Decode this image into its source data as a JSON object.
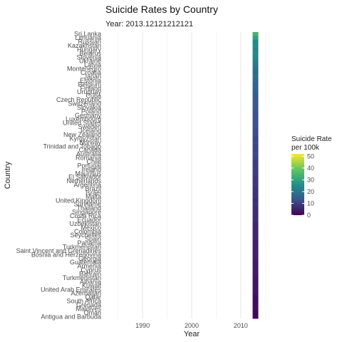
{
  "chart_data": {
    "type": "heatmap",
    "title": "Suicide Rates by Country",
    "subtitle": "Year: 2013.12121212121",
    "xlabel": "Year",
    "ylabel": "Country",
    "xlim": [
      1982,
      2018
    ],
    "x_ticks": [
      1990,
      2000,
      2010
    ],
    "tile_year": 2013,
    "grid": true,
    "legend": {
      "title_line1": "Suicide Rate",
      "title_line2": "per 100k",
      "position": "right",
      "ticks": [
        50,
        40,
        30,
        20,
        10,
        0
      ],
      "range": [
        0,
        52
      ],
      "palette": [
        "#440154",
        "#3b528b",
        "#21908c",
        "#5dc863",
        "#fde725"
      ]
    },
    "country_labels": [
      "Sri Lanka",
      "Lithuania",
      "Russian",
      "Kazakhstan",
      "Hungary",
      "Belarus",
      "Slovenia",
      "Ukraine",
      "Latvia",
      "Montenegro",
      "Croatia",
      "Japan",
      "Estonia",
      "Belgium",
      "Finland",
      "Uruguay",
      "Cuba",
      "Czech Republic",
      "Switzerland",
      "Slovakia",
      "Poland",
      "Germany",
      "Luxembourg",
      "United States",
      "Sweden",
      "Iceland",
      "New Zealand",
      "Kyrgyzstan",
      "Norway",
      "Trinidad and Tobago",
      "Canada",
      "Australia",
      "Romania",
      "Chile",
      "Portugal",
      "Ireland",
      "Mauritius",
      "El Salvador",
      "Netherlands",
      "Argentina",
      "Brazil",
      "Israel",
      "Malta",
      "United Kingdom",
      "Suriname",
      "Thailand",
      "Singapore",
      "Costa Rica",
      "Ecuador",
      "Uzbekistan",
      "Mexico",
      "Colombia",
      "Seychelles",
      "Spain",
      "Panama",
      "Turkmenistan",
      "Saint Vincent and Grenadines",
      "Bosnia and Herzegovina",
      "Georgia",
      "Guatemala",
      "Armenia",
      "Cyprus",
      "Bahrain",
      "Turkmenistan",
      "Albania",
      "Kuwait",
      "United Arab Emirates",
      "Azerbaijan",
      "Qatar",
      "South Africa",
      "Grenada",
      "Maldives",
      "Oman",
      "Antigua and Barbuda"
    ],
    "values": [
      34,
      30,
      24,
      25,
      23,
      25,
      24,
      22,
      21,
      19,
      18,
      19,
      18,
      17,
      17,
      16,
      15,
      15,
      15,
      14,
      14,
      13,
      13,
      13,
      13,
      12,
      12,
      11,
      12,
      11,
      11,
      12,
      11,
      10,
      10,
      10,
      10,
      9,
      9,
      9,
      8,
      8,
      8,
      7,
      8,
      7,
      7,
      7,
      7,
      6,
      6,
      6,
      6,
      6,
      5,
      5,
      5,
      5,
      5,
      4,
      4,
      4,
      4,
      3,
      3,
      3,
      3,
      3,
      2,
      2,
      2,
      2,
      1,
      1
    ]
  }
}
